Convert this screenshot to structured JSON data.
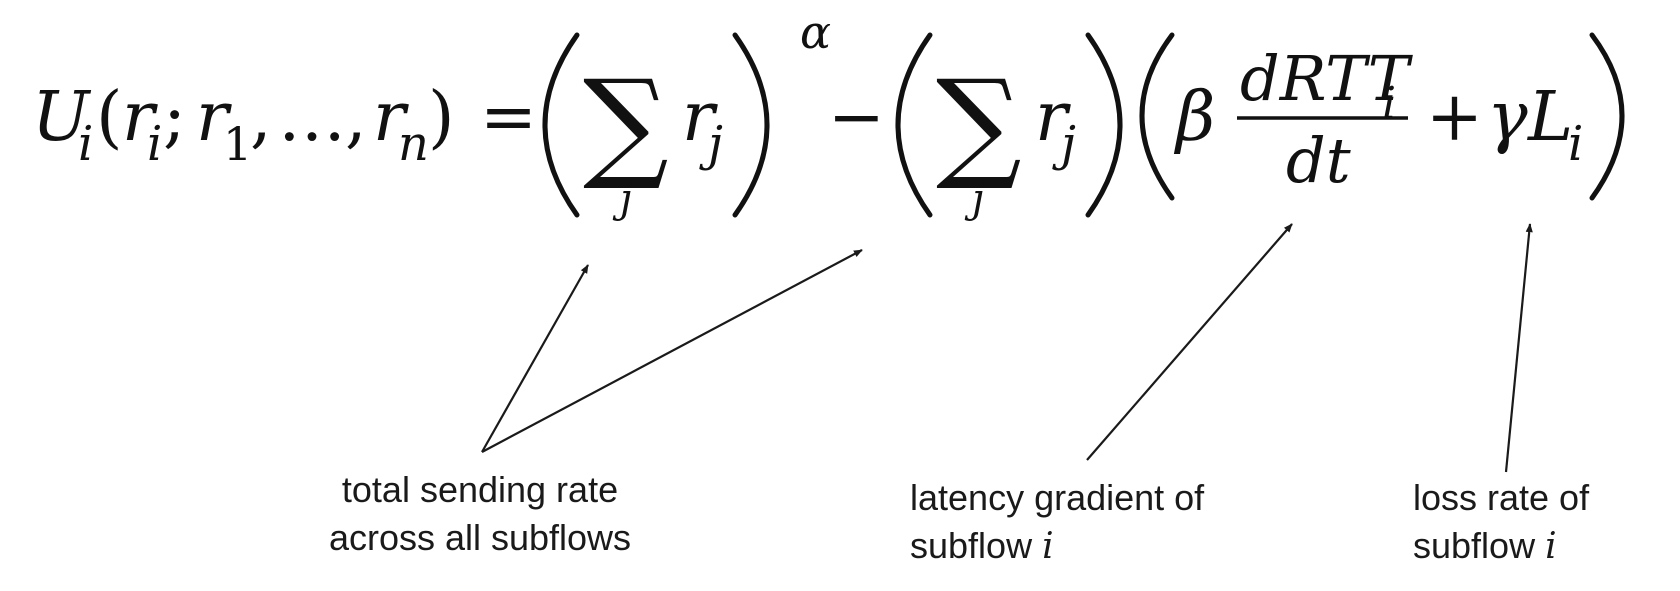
{
  "equation": {
    "U": "U",
    "i": "i",
    "open_paren": "(",
    "close_paren": ")",
    "r": "r",
    "semicolon": ";",
    "one": "1",
    "comma1": ",",
    "ellipsis": "…",
    "comma2": ",",
    "n": "n",
    "equals": "=",
    "sum": "∑",
    "j": "j",
    "alpha": "α",
    "minus": "−",
    "beta": "β",
    "numerator": "dRTT",
    "denominator": "dt",
    "plus": "+",
    "gamma": "γ",
    "L": "L"
  },
  "annotations": {
    "total_rate": {
      "line1": "total sending rate",
      "line2": "across all subflows"
    },
    "latency": {
      "line1": "latency gradient of",
      "line2_text": "subflow ",
      "line2_var": "i"
    },
    "loss": {
      "line1": "loss rate of",
      "line2_text": "subflow ",
      "line2_var": "i"
    }
  },
  "colors": {
    "ink": "#111111",
    "arrow": "#1a1a1a",
    "background": "#ffffff"
  }
}
